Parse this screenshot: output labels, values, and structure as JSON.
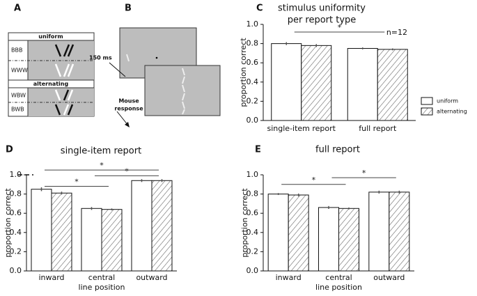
{
  "panel_labels": [
    "A",
    "B",
    "C",
    "D",
    "E"
  ],
  "diagram_a": {
    "uniform": "uniform",
    "alternating": "alternating",
    "rows": [
      "BBB",
      "WWW",
      "WBW",
      "BWB"
    ]
  },
  "diagram_b": {
    "delay": "150 ms",
    "response": [
      "Mouse",
      "response"
    ]
  },
  "chart_data": [
    {
      "type": "bar",
      "title": [
        "stimulus uniformity",
        "per report type"
      ],
      "ylabel": "proportion correct",
      "categories": [
        "single-item report",
        "full report"
      ],
      "series": [
        {
          "name": "uniform",
          "color": "#ffffff",
          "values": [
            0.8,
            0.75
          ],
          "errors": [
            0.015,
            0.01
          ]
        },
        {
          "name": "alternating",
          "color": "#ffffff",
          "hatch": "diagonal",
          "values": [
            0.78,
            0.74
          ],
          "errors": [
            0.015,
            0.01
          ]
        }
      ],
      "ylim": [
        0,
        1
      ],
      "yticks": [
        {
          "value": 0,
          "label": "0.0"
        },
        0.2,
        0.4,
        0.6,
        0.8,
        {
          "value": 1,
          "label": "1.0"
        }
      ],
      "brackets": [
        {
          "from": 0,
          "to": 1,
          "y": 0.92,
          "label": "*"
        }
      ],
      "annotation": "n=12",
      "legend": "right"
    },
    {
      "type": "bar",
      "title": [
        "single-item report"
      ],
      "ylabel": "proportion correct",
      "xlabel": "line position",
      "categories": [
        "inward",
        "central",
        "outward"
      ],
      "series": [
        {
          "name": "uniform",
          "color": "#ffffff",
          "values": [
            0.85,
            0.65,
            0.94
          ],
          "errors": [
            0.02,
            0.015,
            0.015
          ]
        },
        {
          "name": "alternating",
          "color": "#ffffff",
          "hatch": "diagonal",
          "values": [
            0.81,
            0.64,
            0.94
          ],
          "errors": [
            0.015,
            0.01,
            0.015
          ]
        }
      ],
      "ylim": [
        0,
        1
      ],
      "yticks": [
        {
          "value": 0,
          "label": "0.0"
        },
        0.2,
        0.4,
        0.6,
        0.8,
        {
          "value": 1,
          "label": "1.0"
        }
      ],
      "reference_line": 1.0,
      "brackets": [
        {
          "from": 0,
          "to": 1,
          "y": 0.88,
          "label": "*"
        },
        {
          "from": 1,
          "to": 2,
          "y": 0.99,
          "label": "*"
        },
        {
          "from": 0,
          "to": 2,
          "y": 1.05,
          "label": "*"
        }
      ]
    },
    {
      "type": "bar",
      "title": [
        "full report"
      ],
      "ylabel": "proportion correct",
      "xlabel": "line position",
      "categories": [
        "inward",
        "central",
        "outward"
      ],
      "series": [
        {
          "name": "uniform",
          "color": "#ffffff",
          "values": [
            0.8,
            0.66,
            0.82
          ],
          "errors": [
            0.01,
            0.015,
            0.015
          ]
        },
        {
          "name": "alternating",
          "color": "#ffffff",
          "hatch": "diagonal",
          "values": [
            0.79,
            0.65,
            0.82
          ],
          "errors": [
            0.015,
            0.01,
            0.015
          ]
        }
      ],
      "ylim": [
        0,
        1
      ],
      "yticks": [
        {
          "value": 0,
          "label": "0.0"
        },
        0.2,
        0.4,
        0.6,
        0.8,
        {
          "value": 1,
          "label": "1.0"
        }
      ],
      "brackets": [
        {
          "from": 0,
          "to": 1,
          "y": 0.9,
          "label": "*"
        },
        {
          "from": 1,
          "to": 2,
          "y": 0.97,
          "label": "*"
        }
      ]
    }
  ]
}
